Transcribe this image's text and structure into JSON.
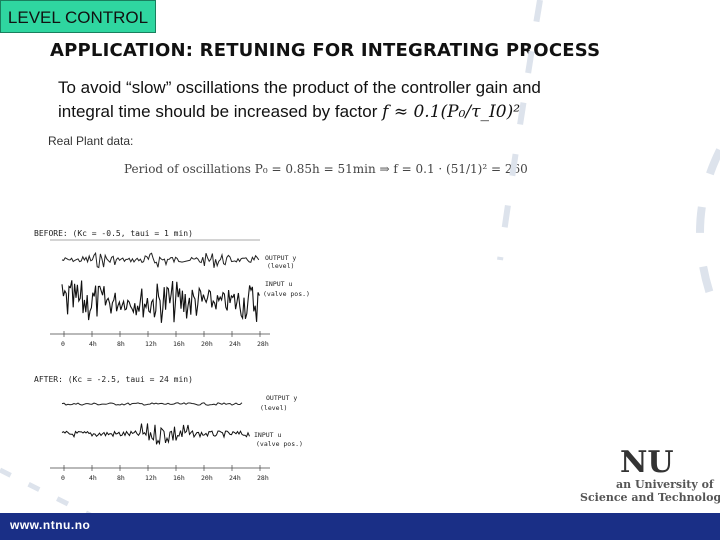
{
  "header": {
    "section_tag": "LEVEL CONTROL",
    "title": "APPLICATION: RETUNING FOR INTEGRATING PROCESS"
  },
  "body": {
    "line1": "To avoid “slow” oscillations the product of the controller gain and",
    "line2_prefix": "integral time should be increased by factor",
    "line2_formula": "f ≈ 0.1(P₀/τ_I0)².",
    "plant_label": "Real Plant data:",
    "period_text": "Period of oscillations P₀ = 0.85h = 51min ⇒ f = 0.1 · (51/1)² = 260"
  },
  "scan": {
    "before_label": "BEFORE:  (Kc = -0.5, taui = 1 min)",
    "after_label": "AFTER:  (Kc = -2.5, taui = 24 min)",
    "output_label_1": "OUTPUT y",
    "output_sub_1": "(level)",
    "input_label_1": "INPUT u",
    "input_sub_1": "(valve pos.)",
    "output_label_2": "OUTPUT y",
    "output_sub_2": "(level)",
    "input_label_2": "INPUT u",
    "input_sub_2": "(valve pos.)",
    "ticks_top": [
      "0",
      "4h",
      "8h",
      "12h",
      "16h",
      "20h",
      "24h",
      "28h"
    ],
    "ticks_bottom": [
      "0",
      "4h",
      "8h",
      "12h",
      "16h",
      "20h",
      "24h",
      "28h"
    ]
  },
  "logo": {
    "mark": "NU",
    "line_a": "an University of",
    "line_b": "Science and Technology"
  },
  "footer": {
    "url": "www.ntnu.no"
  },
  "colors": {
    "tag_green": "#2fd6a0",
    "footer_blue": "#1a2f86"
  }
}
